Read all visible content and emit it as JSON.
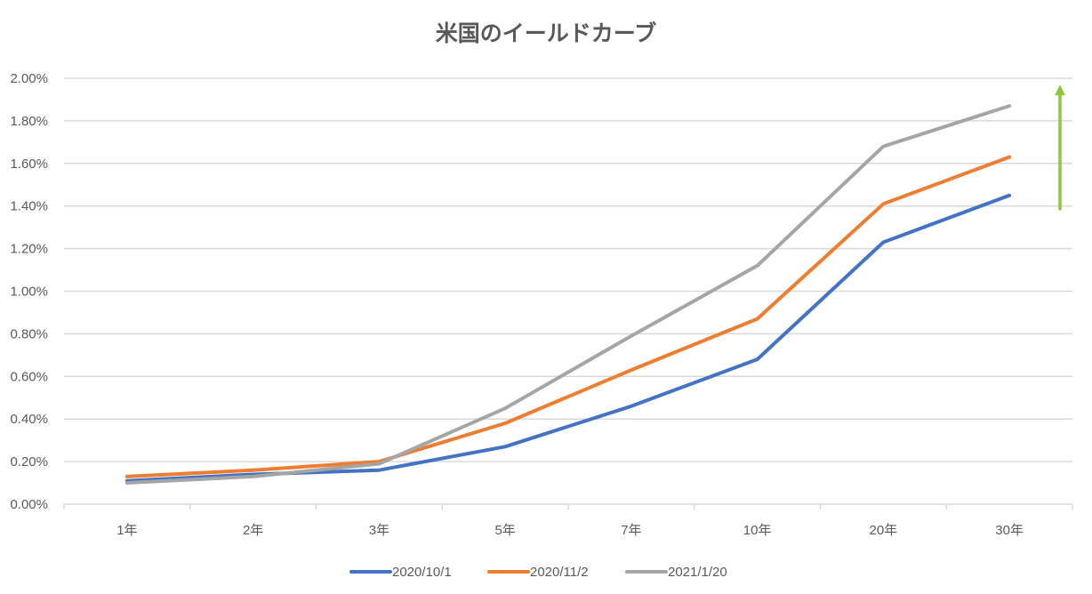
{
  "chart_data": {
    "type": "line",
    "title": "米国のイールドカーブ",
    "xlabel": "",
    "ylabel": "",
    "categories": [
      "1年",
      "2年",
      "3年",
      "5年",
      "7年",
      "10年",
      "20年",
      "30年"
    ],
    "series": [
      {
        "name": "2020/10/1",
        "color": "#4472C4",
        "values": [
          0.11,
          0.14,
          0.16,
          0.27,
          0.46,
          0.68,
          1.23,
          1.45
        ]
      },
      {
        "name": "2020/11/2",
        "color": "#ED7D31",
        "values": [
          0.13,
          0.16,
          0.2,
          0.38,
          0.63,
          0.87,
          1.41,
          1.63
        ]
      },
      {
        "name": "2021/1/20",
        "color": "#A5A5A5",
        "values": [
          0.1,
          0.13,
          0.19,
          0.45,
          0.79,
          1.12,
          1.68,
          1.87
        ]
      }
    ],
    "ylim": [
      0,
      2.0
    ],
    "yticks": [
      "0.00%",
      "0.20%",
      "0.40%",
      "0.60%",
      "0.80%",
      "1.00%",
      "1.20%",
      "1.40%",
      "1.60%",
      "1.80%",
      "2.00%"
    ],
    "y_unit": "%",
    "grid": true,
    "legend_position": "bottom",
    "annotations": [
      {
        "type": "arrow",
        "direction": "up",
        "color": "#8DC63F",
        "from_value": 1.38,
        "to_value": 1.97
      }
    ]
  }
}
